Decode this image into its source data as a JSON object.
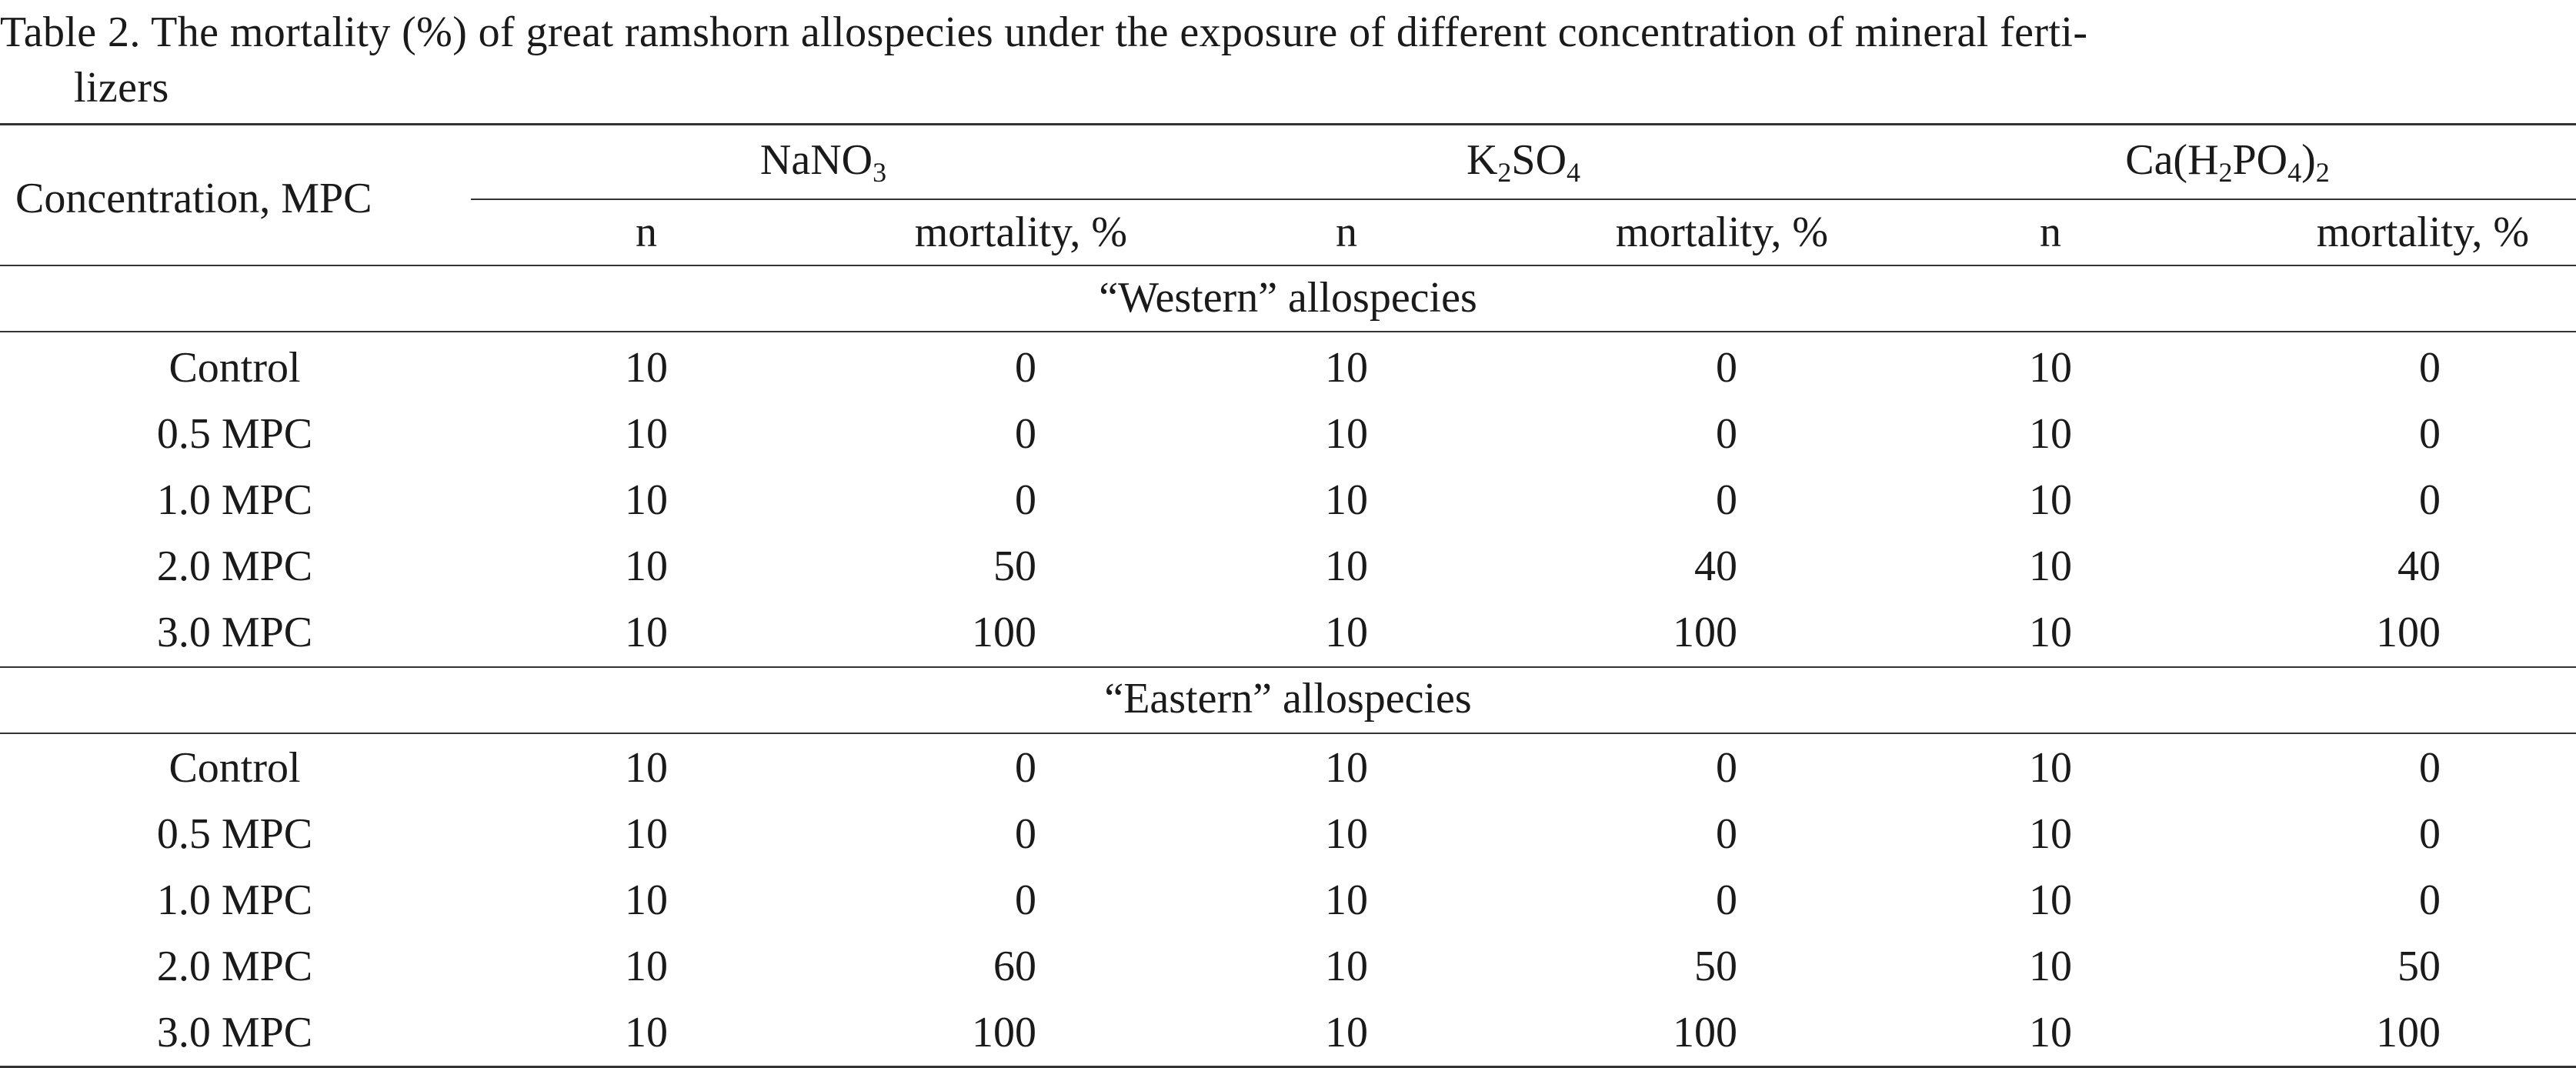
{
  "caption": {
    "line1": "Table 2. The mortality (%) of great ramshorn allospecies under the exposure of different concentration of mineral ferti-",
    "line2": "lizers"
  },
  "header": {
    "concentration_label": "Concentration, MPC",
    "groups": [
      {
        "parts": [
          "NaNO",
          "3",
          ""
        ]
      },
      {
        "parts": [
          "K",
          "2",
          "SO",
          "4",
          ""
        ]
      },
      {
        "parts": [
          "Ca(H",
          "2",
          "PO",
          "4",
          ")",
          "2",
          ""
        ]
      }
    ],
    "n_label": "n",
    "mortality_label": "mortality, %"
  },
  "sections": [
    {
      "title": "“Western” allospecies",
      "rows": [
        {
          "conc": "Control",
          "v": [
            "10",
            "0",
            "10",
            "0",
            "10",
            "0"
          ]
        },
        {
          "conc": "0.5 MPC",
          "v": [
            "10",
            "0",
            "10",
            "0",
            "10",
            "0"
          ]
        },
        {
          "conc": "1.0 MPC",
          "v": [
            "10",
            "0",
            "10",
            "0",
            "10",
            "0"
          ]
        },
        {
          "conc": "2.0 MPC",
          "v": [
            "10",
            "50",
            "10",
            "40",
            "10",
            "40"
          ]
        },
        {
          "conc": "3.0 MPC",
          "v": [
            "10",
            "100",
            "10",
            "100",
            "10",
            "100"
          ]
        }
      ]
    },
    {
      "title": "“Eastern” allospecies",
      "rows": [
        {
          "conc": "Control",
          "v": [
            "10",
            "0",
            "10",
            "0",
            "10",
            "0"
          ]
        },
        {
          "conc": "0.5 MPC",
          "v": [
            "10",
            "0",
            "10",
            "0",
            "10",
            "0"
          ]
        },
        {
          "conc": "1.0 MPC",
          "v": [
            "10",
            "0",
            "10",
            "0",
            "10",
            "0"
          ]
        },
        {
          "conc": "2.0 MPC",
          "v": [
            "10",
            "60",
            "10",
            "50",
            "10",
            "50"
          ]
        },
        {
          "conc": "3.0 MPC",
          "v": [
            "10",
            "100",
            "10",
            "100",
            "10",
            "100"
          ]
        }
      ]
    }
  ]
}
